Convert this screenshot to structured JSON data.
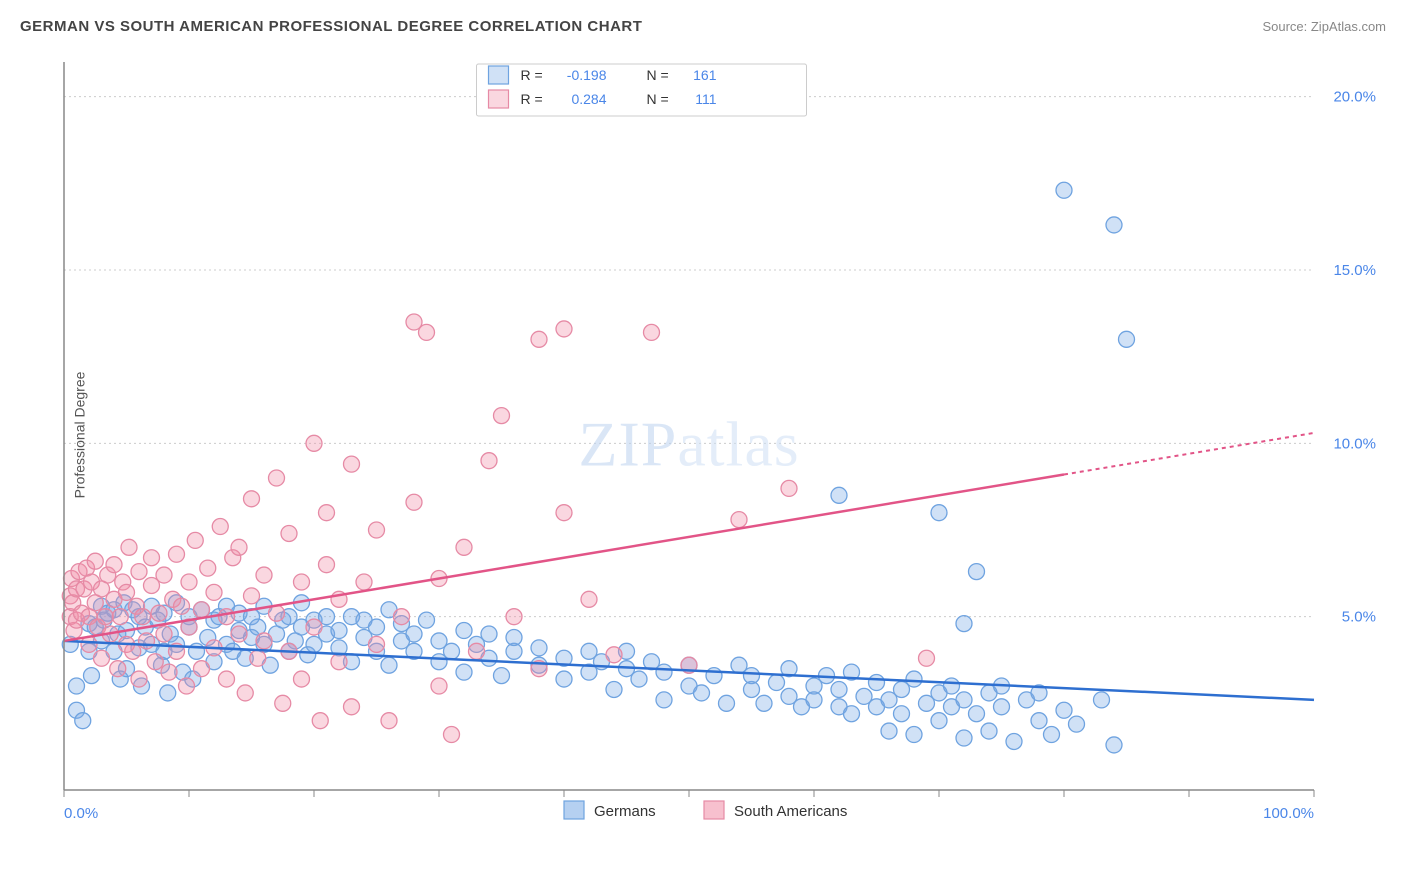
{
  "title": "GERMAN VS SOUTH AMERICAN PROFESSIONAL DEGREE CORRELATION CHART",
  "source": "Source: ZipAtlas.com",
  "ylabel": "Professional Degree",
  "watermark_bold": "ZIP",
  "watermark_thin": "atlas",
  "chart": {
    "type": "scatter",
    "background_color": "#ffffff",
    "grid_color": "#cccccc",
    "axis_color": "#888888",
    "xlim": [
      0,
      100
    ],
    "ylim": [
      0,
      21
    ],
    "xticks": [
      0,
      10,
      20,
      30,
      40,
      50,
      60,
      70,
      80,
      90,
      100
    ],
    "yticks": [
      5,
      10,
      15,
      20
    ],
    "xlabel_min": "0.0%",
    "xlabel_max": "100.0%",
    "ytick_labels": [
      "5.0%",
      "10.0%",
      "15.0%",
      "20.0%"
    ],
    "series": [
      {
        "name": "Germans",
        "color_fill": "rgba(120,170,230,0.35)",
        "color_stroke": "#6fa3e0",
        "marker_radius": 8,
        "line_color": "#2e6fd0",
        "line_dash": "",
        "line_dash_ext": "",
        "trend_y_start": 4.3,
        "trend_y_end": 2.6,
        "r": "-0.198",
        "n": "161",
        "points": [
          [
            0.5,
            4.2
          ],
          [
            1,
            3.0
          ],
          [
            1,
            2.3
          ],
          [
            1.5,
            2.0
          ],
          [
            2,
            4.0
          ],
          [
            2,
            4.8
          ],
          [
            2.2,
            3.3
          ],
          [
            2.5,
            4.7
          ],
          [
            3,
            4.3
          ],
          [
            3,
            5.3
          ],
          [
            3.2,
            4.9
          ],
          [
            3.5,
            5.1
          ],
          [
            4,
            5.2
          ],
          [
            4,
            4.0
          ],
          [
            4.3,
            4.5
          ],
          [
            4.5,
            3.2
          ],
          [
            4.8,
            5.4
          ],
          [
            5,
            4.6
          ],
          [
            5,
            3.5
          ],
          [
            5.5,
            5.2
          ],
          [
            6,
            5.0
          ],
          [
            6,
            4.1
          ],
          [
            6.2,
            3.0
          ],
          [
            6.5,
            4.7
          ],
          [
            7,
            5.3
          ],
          [
            7,
            4.2
          ],
          [
            7.5,
            4.9
          ],
          [
            7.8,
            3.6
          ],
          [
            8,
            5.1
          ],
          [
            8,
            4.0
          ],
          [
            8.3,
            2.8
          ],
          [
            8.5,
            4.5
          ],
          [
            9,
            5.4
          ],
          [
            9,
            4.2
          ],
          [
            9.5,
            3.4
          ],
          [
            10,
            4.7
          ],
          [
            10,
            5.0
          ],
          [
            10.3,
            3.2
          ],
          [
            10.6,
            4.0
          ],
          [
            11,
            5.2
          ],
          [
            11.5,
            4.4
          ],
          [
            12,
            4.9
          ],
          [
            12,
            3.7
          ],
          [
            12.4,
            5.0
          ],
          [
            13,
            4.2
          ],
          [
            13,
            5.3
          ],
          [
            13.5,
            4.0
          ],
          [
            14,
            4.6
          ],
          [
            14,
            5.1
          ],
          [
            14.5,
            3.8
          ],
          [
            15,
            4.4
          ],
          [
            15,
            5.0
          ],
          [
            15.5,
            4.7
          ],
          [
            16,
            4.2
          ],
          [
            16,
            5.3
          ],
          [
            16.5,
            3.6
          ],
          [
            17,
            4.5
          ],
          [
            17.5,
            4.9
          ],
          [
            18,
            4.0
          ],
          [
            18,
            5.0
          ],
          [
            18.5,
            4.3
          ],
          [
            19,
            4.7
          ],
          [
            19,
            5.4
          ],
          [
            19.5,
            3.9
          ],
          [
            20,
            4.2
          ],
          [
            20,
            4.9
          ],
          [
            21,
            4.5
          ],
          [
            21,
            5.0
          ],
          [
            22,
            4.1
          ],
          [
            22,
            4.6
          ],
          [
            23,
            5.0
          ],
          [
            23,
            3.7
          ],
          [
            24,
            4.4
          ],
          [
            24,
            4.9
          ],
          [
            25,
            4.0
          ],
          [
            25,
            4.7
          ],
          [
            26,
            5.2
          ],
          [
            26,
            3.6
          ],
          [
            27,
            4.3
          ],
          [
            27,
            4.8
          ],
          [
            28,
            4.0
          ],
          [
            28,
            4.5
          ],
          [
            29,
            4.9
          ],
          [
            30,
            3.7
          ],
          [
            30,
            4.3
          ],
          [
            31,
            4.0
          ],
          [
            32,
            4.6
          ],
          [
            32,
            3.4
          ],
          [
            33,
            4.2
          ],
          [
            34,
            3.8
          ],
          [
            34,
            4.5
          ],
          [
            35,
            3.3
          ],
          [
            36,
            4.0
          ],
          [
            36,
            4.4
          ],
          [
            38,
            3.6
          ],
          [
            38,
            4.1
          ],
          [
            40,
            3.8
          ],
          [
            40,
            3.2
          ],
          [
            42,
            4.0
          ],
          [
            42,
            3.4
          ],
          [
            43,
            3.7
          ],
          [
            44,
            2.9
          ],
          [
            45,
            3.5
          ],
          [
            45,
            4.0
          ],
          [
            46,
            3.2
          ],
          [
            47,
            3.7
          ],
          [
            48,
            2.6
          ],
          [
            48,
            3.4
          ],
          [
            50,
            3.0
          ],
          [
            50,
            3.6
          ],
          [
            51,
            2.8
          ],
          [
            52,
            3.3
          ],
          [
            53,
            2.5
          ],
          [
            54,
            3.6
          ],
          [
            55,
            2.9
          ],
          [
            55,
            3.3
          ],
          [
            56,
            2.5
          ],
          [
            57,
            3.1
          ],
          [
            58,
            2.7
          ],
          [
            58,
            3.5
          ],
          [
            59,
            2.4
          ],
          [
            60,
            3.0
          ],
          [
            60,
            2.6
          ],
          [
            61,
            3.3
          ],
          [
            62,
            2.4
          ],
          [
            62,
            2.9
          ],
          [
            63,
            2.2
          ],
          [
            63,
            3.4
          ],
          [
            64,
            2.7
          ],
          [
            65,
            2.4
          ],
          [
            65,
            3.1
          ],
          [
            66,
            1.7
          ],
          [
            66,
            2.6
          ],
          [
            67,
            2.9
          ],
          [
            67,
            2.2
          ],
          [
            68,
            3.2
          ],
          [
            68,
            1.6
          ],
          [
            69,
            2.5
          ],
          [
            70,
            2.8
          ],
          [
            70,
            2.0
          ],
          [
            71,
            2.4
          ],
          [
            71,
            3.0
          ],
          [
            72,
            1.5
          ],
          [
            72,
            2.6
          ],
          [
            73,
            2.2
          ],
          [
            74,
            2.8
          ],
          [
            74,
            1.7
          ],
          [
            75,
            2.4
          ],
          [
            75,
            3.0
          ],
          [
            76,
            1.4
          ],
          [
            77,
            2.6
          ],
          [
            78,
            2.0
          ],
          [
            78,
            2.8
          ],
          [
            79,
            1.6
          ],
          [
            80,
            2.3
          ],
          [
            81,
            1.9
          ],
          [
            83,
            2.6
          ],
          [
            84,
            1.3
          ],
          [
            62,
            8.5
          ],
          [
            70,
            8.0
          ],
          [
            72,
            4.8
          ],
          [
            73,
            6.3
          ],
          [
            80,
            17.3
          ],
          [
            84,
            16.3
          ],
          [
            85,
            13.0
          ]
        ]
      },
      {
        "name": "South Americans",
        "color_fill": "rgba(240,140,165,0.35)",
        "color_stroke": "#e68aa5",
        "marker_radius": 8,
        "line_color": "#e25487",
        "line_dash": "",
        "line_dash_ext": "4 4",
        "trend_y_start": 4.3,
        "trend_y_end": 10.3,
        "trend_x_solid_end": 80,
        "r": "0.284",
        "n": "111",
        "points": [
          [
            0.5,
            5.6
          ],
          [
            0.5,
            5.0
          ],
          [
            0.6,
            6.1
          ],
          [
            0.7,
            5.4
          ],
          [
            0.8,
            4.6
          ],
          [
            1,
            5.8
          ],
          [
            1,
            4.9
          ],
          [
            1.2,
            6.3
          ],
          [
            1.4,
            5.1
          ],
          [
            1.6,
            5.8
          ],
          [
            1.8,
            6.4
          ],
          [
            2,
            5.0
          ],
          [
            2,
            4.2
          ],
          [
            2.2,
            6.0
          ],
          [
            2.5,
            5.4
          ],
          [
            2.5,
            6.6
          ],
          [
            2.7,
            4.7
          ],
          [
            3,
            5.8
          ],
          [
            3,
            3.8
          ],
          [
            3.3,
            5.0
          ],
          [
            3.5,
            6.2
          ],
          [
            3.7,
            4.5
          ],
          [
            4,
            5.5
          ],
          [
            4,
            6.5
          ],
          [
            4.3,
            3.5
          ],
          [
            4.5,
            5.0
          ],
          [
            4.7,
            6.0
          ],
          [
            5,
            4.2
          ],
          [
            5,
            5.7
          ],
          [
            5.2,
            7.0
          ],
          [
            5.5,
            4.0
          ],
          [
            5.8,
            5.3
          ],
          [
            6,
            6.3
          ],
          [
            6,
            3.2
          ],
          [
            6.3,
            5.0
          ],
          [
            6.6,
            4.3
          ],
          [
            7,
            5.9
          ],
          [
            7,
            6.7
          ],
          [
            7.3,
            3.7
          ],
          [
            7.6,
            5.1
          ],
          [
            8,
            4.5
          ],
          [
            8,
            6.2
          ],
          [
            8.4,
            3.4
          ],
          [
            8.7,
            5.5
          ],
          [
            9,
            6.8
          ],
          [
            9,
            4.0
          ],
          [
            9.4,
            5.3
          ],
          [
            9.8,
            3.0
          ],
          [
            10,
            6.0
          ],
          [
            10,
            4.7
          ],
          [
            10.5,
            7.2
          ],
          [
            11,
            5.2
          ],
          [
            11,
            3.5
          ],
          [
            11.5,
            6.4
          ],
          [
            12,
            4.1
          ],
          [
            12,
            5.7
          ],
          [
            12.5,
            7.6
          ],
          [
            13,
            3.2
          ],
          [
            13,
            5.0
          ],
          [
            13.5,
            6.7
          ],
          [
            14,
            4.5
          ],
          [
            14,
            7.0
          ],
          [
            14.5,
            2.8
          ],
          [
            15,
            5.6
          ],
          [
            15,
            8.4
          ],
          [
            15.5,
            3.8
          ],
          [
            16,
            6.2
          ],
          [
            16,
            4.3
          ],
          [
            17,
            9.0
          ],
          [
            17,
            5.1
          ],
          [
            17.5,
            2.5
          ],
          [
            18,
            7.4
          ],
          [
            18,
            4.0
          ],
          [
            19,
            6.0
          ],
          [
            19,
            3.2
          ],
          [
            20,
            10.0
          ],
          [
            20,
            4.7
          ],
          [
            20.5,
            2.0
          ],
          [
            21,
            6.5
          ],
          [
            21,
            8.0
          ],
          [
            22,
            3.7
          ],
          [
            22,
            5.5
          ],
          [
            23,
            9.4
          ],
          [
            23,
            2.4
          ],
          [
            24,
            6.0
          ],
          [
            25,
            4.2
          ],
          [
            25,
            7.5
          ],
          [
            26,
            2.0
          ],
          [
            27,
            5.0
          ],
          [
            28,
            8.3
          ],
          [
            28,
            13.5
          ],
          [
            29,
            13.2
          ],
          [
            30,
            3.0
          ],
          [
            30,
            6.1
          ],
          [
            31,
            1.6
          ],
          [
            32,
            7.0
          ],
          [
            33,
            4.0
          ],
          [
            34,
            9.5
          ],
          [
            35,
            10.8
          ],
          [
            36,
            5.0
          ],
          [
            38,
            3.5
          ],
          [
            38,
            13.0
          ],
          [
            40,
            13.3
          ],
          [
            40,
            8.0
          ],
          [
            42,
            5.5
          ],
          [
            44,
            3.9
          ],
          [
            47,
            13.2
          ],
          [
            50,
            3.6
          ],
          [
            54,
            7.8
          ],
          [
            58,
            8.7
          ],
          [
            69,
            3.8
          ]
        ]
      }
    ],
    "legend": {
      "r_label": "R =",
      "n_label": "N ="
    },
    "footer": {
      "series1_label": "Germans",
      "series2_label": "South Americans",
      "swatch1_fill": "rgba(120,170,230,0.55)",
      "swatch1_stroke": "#6fa3e0",
      "swatch2_fill": "rgba(240,140,165,0.55)",
      "swatch2_stroke": "#e68aa5"
    }
  }
}
